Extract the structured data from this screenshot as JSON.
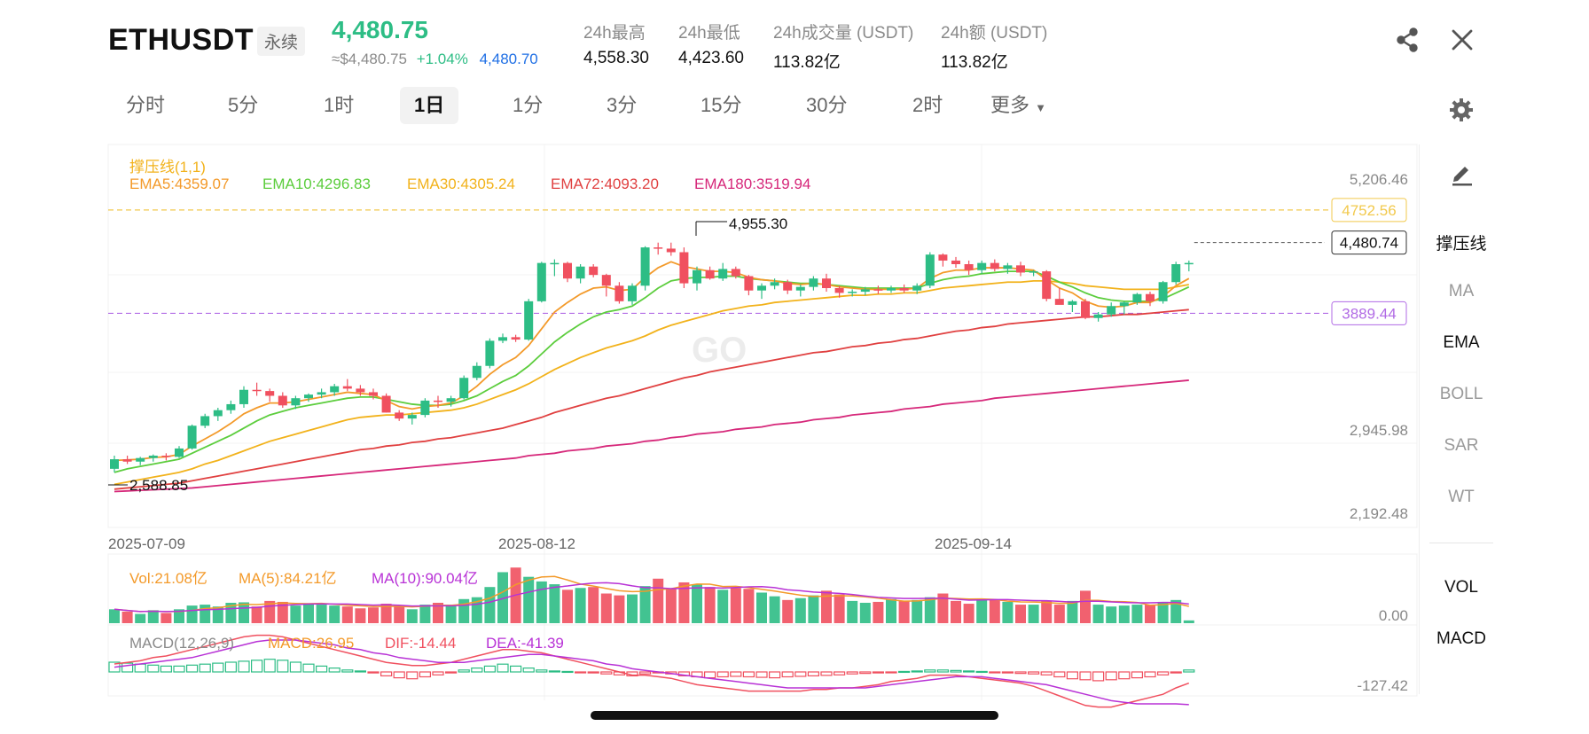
{
  "header": {
    "symbol": "ETHUSDT",
    "perpetual_label": "永续",
    "last_price": "4,480.75",
    "usd_equiv": "≈$4,480.75",
    "change_pct": "+1.04%",
    "mark_price": "4,480.70",
    "stats": [
      {
        "label": "24h最高",
        "value": "4,558.30"
      },
      {
        "label": "24h最低",
        "value": "4,423.60"
      },
      {
        "label": "24h成交量 (USDT)",
        "value": "113.82亿"
      },
      {
        "label": "24h额 (USDT)",
        "value": "113.82亿"
      }
    ],
    "share_icon": "share-icon",
    "close_icon": "close-icon"
  },
  "tabs": {
    "items": [
      "分时",
      "5分",
      "1时",
      "1日",
      "1分",
      "3分",
      "15分",
      "30分",
      "2时",
      "更多"
    ],
    "active": "1日",
    "settings_icon": "gear-icon"
  },
  "indicators": {
    "sr_label": "撑压线(1,1)",
    "ema5": "EMA5:4359.07",
    "ema10": "EMA10:4296.83",
    "ema30": "EMA30:4305.24",
    "ema72": "EMA72:4093.20",
    "ema180": "EMA180:3519.94",
    "vol": "Vol:21.08亿",
    "vol_ma5": "MA(5):84.21亿",
    "vol_ma10": "MA(10):90.04亿",
    "macd_params": "MACD(12,26,9)",
    "macd": "MACD:26.95",
    "dif": "DIF:-14.44",
    "dea": "DEA:-41.39"
  },
  "axis": {
    "price_ticks": [
      "5,206.46",
      "2,945.98",
      "2,192.48"
    ],
    "resistance": "4752.56",
    "support": "3889.44",
    "current_price_tag": "4,480.74",
    "dates": [
      "2025-07-09",
      "2025-08-12",
      "2025-09-14"
    ],
    "high_marker": "4,955.30",
    "low_marker": "2,588.85",
    "vol_zero": "0.00",
    "macd_min": "-127.42"
  },
  "right_panel": {
    "draw_icon": "pencil-icon",
    "items": [
      "撑压线",
      "MA",
      "EMA",
      "BOLL",
      "SAR",
      "WT"
    ],
    "active_items": [
      "撑压线",
      "EMA"
    ],
    "sub_items": [
      "VOL",
      "MACD"
    ]
  },
  "colors": {
    "up": "#2dbd85",
    "down": "#f0505f",
    "ema5": "#f39a2a",
    "ema10": "#5ccd3d",
    "ema30": "#f2b21b",
    "ema72": "#e04040",
    "ema180": "#d6287a",
    "macd_dea": "#b832d6",
    "resistance": "#f2c94c",
    "support": "#b16be5"
  },
  "chart_data": {
    "type": "candlestick",
    "y_range": [
      2192.48,
      5206.46
    ],
    "candles": [
      [
        2590,
        2700,
        2560,
        2670
      ],
      [
        2670,
        2700,
        2630,
        2650
      ],
      [
        2650,
        2690,
        2620,
        2680
      ],
      [
        2680,
        2710,
        2650,
        2700
      ],
      [
        2700,
        2720,
        2660,
        2690
      ],
      [
        2690,
        2780,
        2680,
        2760
      ],
      [
        2760,
        2960,
        2750,
        2950
      ],
      [
        2950,
        3050,
        2930,
        3030
      ],
      [
        3030,
        3100,
        2990,
        3080
      ],
      [
        3080,
        3160,
        3050,
        3130
      ],
      [
        3130,
        3280,
        3100,
        3250
      ],
      [
        3250,
        3310,
        3200,
        3240
      ],
      [
        3240,
        3260,
        3150,
        3200
      ],
      [
        3200,
        3230,
        3100,
        3120
      ],
      [
        3120,
        3200,
        3090,
        3180
      ],
      [
        3180,
        3220,
        3150,
        3210
      ],
      [
        3210,
        3260,
        3180,
        3230
      ],
      [
        3230,
        3300,
        3200,
        3280
      ],
      [
        3280,
        3340,
        3240,
        3260
      ],
      [
        3260,
        3290,
        3200,
        3230
      ],
      [
        3230,
        3260,
        3170,
        3200
      ],
      [
        3200,
        3220,
        3060,
        3060
      ],
      [
        3060,
        3080,
        2990,
        3010
      ],
      [
        3010,
        3060,
        2960,
        3040
      ],
      [
        3040,
        3180,
        3020,
        3160
      ],
      [
        3160,
        3200,
        3100,
        3150
      ],
      [
        3150,
        3200,
        3110,
        3180
      ],
      [
        3180,
        3370,
        3170,
        3350
      ],
      [
        3350,
        3480,
        3330,
        3450
      ],
      [
        3450,
        3680,
        3430,
        3660
      ],
      [
        3660,
        3720,
        3640,
        3690
      ],
      [
        3690,
        3710,
        3650,
        3670
      ],
      [
        3670,
        4010,
        3660,
        3990
      ],
      [
        3990,
        4320,
        3980,
        4310
      ],
      [
        4310,
        4340,
        4200,
        4310
      ],
      [
        4310,
        4320,
        4150,
        4180
      ],
      [
        4180,
        4300,
        4140,
        4280
      ],
      [
        4280,
        4300,
        4190,
        4210
      ],
      [
        4210,
        4220,
        4030,
        4120
      ],
      [
        4120,
        4150,
        3970,
        3990
      ],
      [
        3990,
        4140,
        3960,
        4120
      ],
      [
        4120,
        4450,
        4080,
        4440
      ],
      [
        4440,
        4480,
        4380,
        4430
      ],
      [
        4430,
        4480,
        4370,
        4400
      ],
      [
        4400,
        4440,
        4100,
        4140
      ],
      [
        4140,
        4280,
        4080,
        4250
      ],
      [
        4250,
        4280,
        4170,
        4180
      ],
      [
        4180,
        4310,
        4160,
        4260
      ],
      [
        4260,
        4280,
        4180,
        4200
      ],
      [
        4200,
        4210,
        4040,
        4080
      ],
      [
        4080,
        4140,
        4010,
        4120
      ],
      [
        4120,
        4180,
        4090,
        4150
      ],
      [
        4150,
        4170,
        4050,
        4080
      ],
      [
        4080,
        4130,
        4030,
        4110
      ],
      [
        4110,
        4200,
        4080,
        4180
      ],
      [
        4180,
        4220,
        4070,
        4100
      ],
      [
        4100,
        4120,
        4020,
        4060
      ],
      [
        4060,
        4090,
        4030,
        4070
      ],
      [
        4070,
        4110,
        4040,
        4090
      ],
      [
        4090,
        4120,
        4050,
        4080
      ],
      [
        4080,
        4120,
        4060,
        4100
      ],
      [
        4100,
        4130,
        4060,
        4080
      ],
      [
        4080,
        4140,
        4050,
        4120
      ],
      [
        4120,
        4400,
        4100,
        4380
      ],
      [
        4380,
        4390,
        4280,
        4330
      ],
      [
        4330,
        4360,
        4270,
        4300
      ],
      [
        4300,
        4330,
        4210,
        4250
      ],
      [
        4250,
        4330,
        4220,
        4310
      ],
      [
        4310,
        4340,
        4240,
        4260
      ],
      [
        4260,
        4310,
        4220,
        4290
      ],
      [
        4290,
        4320,
        4200,
        4230
      ],
      [
        4230,
        4250,
        4200,
        4240
      ],
      [
        4240,
        4250,
        3990,
        4010
      ],
      [
        4010,
        4100,
        3970,
        3960
      ],
      [
        3960,
        4000,
        3900,
        3990
      ],
      [
        3990,
        4010,
        3840,
        3850
      ],
      [
        3850,
        3900,
        3820,
        3880
      ],
      [
        3880,
        3980,
        3860,
        3950
      ],
      [
        3950,
        3990,
        3880,
        3980
      ],
      [
        3980,
        4060,
        3960,
        4050
      ],
      [
        4050,
        4070,
        3950,
        3990
      ],
      [
        3990,
        4160,
        3970,
        4150
      ],
      [
        4150,
        4320,
        4130,
        4300
      ],
      [
        4300,
        4330,
        4240,
        4310
      ]
    ],
    "ema": {
      "EMA5": [
        2660,
        2665,
        2670,
        2685,
        2690,
        2710,
        2780,
        2840,
        2900,
        2970,
        3050,
        3100,
        3140,
        3140,
        3150,
        3170,
        3190,
        3210,
        3230,
        3220,
        3210,
        3160,
        3110,
        3090,
        3110,
        3120,
        3140,
        3200,
        3280,
        3380,
        3460,
        3520,
        3620,
        3760,
        3900,
        3980,
        4050,
        4100,
        4110,
        4080,
        4090,
        4190,
        4270,
        4320,
        4280,
        4260,
        4240,
        4240,
        4230,
        4190,
        4170,
        4160,
        4140,
        4130,
        4140,
        4130,
        4110,
        4100,
        4090,
        4090,
        4090,
        4090,
        4100,
        4180,
        4230,
        4250,
        4250,
        4270,
        4270,
        4270,
        4260,
        4250,
        4170,
        4100,
        4060,
        3990,
        3950,
        3940,
        3950,
        3980,
        3980,
        4030,
        4120,
        4180
      ],
      "EMA10": [
        2560,
        2590,
        2610,
        2630,
        2650,
        2670,
        2720,
        2770,
        2820,
        2870,
        2930,
        2990,
        3040,
        3070,
        3100,
        3120,
        3140,
        3160,
        3180,
        3190,
        3190,
        3170,
        3150,
        3130,
        3120,
        3120,
        3130,
        3160,
        3200,
        3260,
        3320,
        3370,
        3450,
        3550,
        3650,
        3730,
        3800,
        3860,
        3900,
        3920,
        3950,
        4020,
        4100,
        4160,
        4180,
        4190,
        4190,
        4200,
        4200,
        4180,
        4170,
        4160,
        4150,
        4140,
        4140,
        4130,
        4120,
        4110,
        4100,
        4100,
        4100,
        4100,
        4100,
        4140,
        4170,
        4190,
        4200,
        4220,
        4230,
        4240,
        4240,
        4240,
        4200,
        4150,
        4110,
        4060,
        4020,
        4000,
        3990,
        3990,
        3990,
        4010,
        4060,
        4110
      ],
      "EMA30": [
        2460,
        2480,
        2500,
        2520,
        2540,
        2560,
        2590,
        2630,
        2660,
        2700,
        2740,
        2780,
        2820,
        2850,
        2880,
        2910,
        2940,
        2970,
        3000,
        3020,
        3030,
        3040,
        3040,
        3050,
        3060,
        3070,
        3080,
        3100,
        3130,
        3170,
        3210,
        3250,
        3300,
        3360,
        3420,
        3470,
        3520,
        3560,
        3600,
        3630,
        3660,
        3700,
        3750,
        3790,
        3820,
        3850,
        3880,
        3910,
        3930,
        3950,
        3960,
        3980,
        3990,
        4000,
        4010,
        4020,
        4030,
        4040,
        4040,
        4050,
        4050,
        4060,
        4060,
        4080,
        4100,
        4110,
        4120,
        4130,
        4140,
        4150,
        4150,
        4160,
        4160,
        4150,
        4140,
        4120,
        4110,
        4100,
        4090,
        4090,
        4090,
        4090,
        4110,
        4130
      ],
      "EMA72": [
        2420,
        2430,
        2440,
        2450,
        2460,
        2470,
        2490,
        2510,
        2530,
        2550,
        2570,
        2590,
        2610,
        2630,
        2650,
        2670,
        2690,
        2710,
        2730,
        2750,
        2760,
        2780,
        2790,
        2810,
        2820,
        2840,
        2850,
        2870,
        2890,
        2910,
        2930,
        2960,
        2990,
        3020,
        3060,
        3090,
        3120,
        3150,
        3180,
        3200,
        3230,
        3260,
        3290,
        3320,
        3350,
        3370,
        3400,
        3420,
        3440,
        3460,
        3480,
        3500,
        3520,
        3540,
        3560,
        3570,
        3590,
        3610,
        3620,
        3640,
        3650,
        3670,
        3680,
        3700,
        3720,
        3740,
        3750,
        3770,
        3780,
        3800,
        3810,
        3820,
        3830,
        3840,
        3850,
        3860,
        3860,
        3870,
        3880,
        3880,
        3890,
        3900,
        3910,
        3920
      ],
      "EMA180": [
        2400,
        2405,
        2410,
        2415,
        2420,
        2425,
        2430,
        2440,
        2450,
        2460,
        2470,
        2480,
        2490,
        2500,
        2510,
        2520,
        2530,
        2540,
        2550,
        2560,
        2570,
        2580,
        2590,
        2600,
        2610,
        2620,
        2630,
        2640,
        2650,
        2660,
        2670,
        2680,
        2700,
        2710,
        2720,
        2740,
        2750,
        2760,
        2780,
        2790,
        2800,
        2820,
        2830,
        2850,
        2860,
        2880,
        2890,
        2900,
        2920,
        2930,
        2940,
        2960,
        2970,
        2980,
        3000,
        3010,
        3020,
        3040,
        3050,
        3060,
        3070,
        3090,
        3100,
        3110,
        3130,
        3140,
        3150,
        3160,
        3180,
        3190,
        3200,
        3210,
        3220,
        3230,
        3240,
        3250,
        3260,
        3270,
        3280,
        3290,
        3300,
        3310,
        3320,
        3330
      ]
    },
    "volume": [
      30,
      25,
      20,
      28,
      22,
      30,
      38,
      40,
      36,
      44,
      45,
      36,
      48,
      46,
      38,
      42,
      40,
      38,
      36,
      32,
      34,
      42,
      38,
      30,
      40,
      44,
      40,
      52,
      56,
      78,
      110,
      120,
      100,
      90,
      84,
      72,
      76,
      78,
      64,
      60,
      62,
      80,
      96,
      74,
      88,
      84,
      78,
      72,
      76,
      74,
      66,
      58,
      50,
      54,
      60,
      70,
      62,
      48,
      44,
      46,
      52,
      48,
      50,
      56,
      64,
      48,
      42,
      52,
      50,
      46,
      40,
      40,
      48,
      40,
      48,
      70,
      40,
      36,
      38,
      40,
      40,
      46,
      50,
      6
    ],
    "macd_hist": [
      20,
      18,
      16,
      14,
      12,
      12,
      14,
      16,
      18,
      20,
      22,
      24,
      26,
      24,
      20,
      16,
      12,
      8,
      4,
      2,
      -2,
      -8,
      -12,
      -14,
      -10,
      -6,
      -2,
      4,
      8,
      12,
      16,
      12,
      8,
      4,
      2,
      1,
      -1,
      -2,
      -4,
      -6,
      -8,
      -4,
      -2,
      -4,
      -8,
      -10,
      -12,
      -10,
      -9,
      -10,
      -11,
      -12,
      -10,
      -9,
      -8,
      -7,
      -6,
      -4,
      -3,
      -2,
      -1,
      1,
      2,
      4,
      4,
      3,
      2,
      1,
      -1,
      -2,
      -3,
      -4,
      -6,
      -10,
      -14,
      -16,
      -18,
      -16,
      -14,
      -12,
      -10,
      -6,
      -2,
      4
    ],
    "macd_dif": [
      10,
      12,
      14,
      18,
      20,
      24,
      28,
      32,
      36,
      40,
      44,
      46,
      46,
      44,
      40,
      36,
      32,
      28,
      24,
      20,
      16,
      12,
      10,
      8,
      8,
      10,
      12,
      16,
      20,
      24,
      28,
      28,
      26,
      24,
      20,
      16,
      12,
      8,
      4,
      0,
      -4,
      -4,
      -6,
      -8,
      -12,
      -16,
      -18,
      -20,
      -22,
      -24,
      -24,
      -24,
      -24,
      -24,
      -22,
      -22,
      -20,
      -20,
      -18,
      -16,
      -12,
      -10,
      -8,
      -4,
      -4,
      -4,
      -6,
      -8,
      -10,
      -12,
      -14,
      -18,
      -24,
      -30,
      -36,
      -42,
      -44,
      -44,
      -40,
      -36,
      -32,
      -28,
      -20,
      -14
    ],
    "macd_dea": [
      6,
      8,
      10,
      12,
      14,
      16,
      18,
      22,
      26,
      30,
      34,
      38,
      40,
      40,
      40,
      38,
      36,
      34,
      30,
      28,
      24,
      22,
      18,
      16,
      14,
      12,
      12,
      12,
      14,
      16,
      18,
      20,
      22,
      22,
      20,
      18,
      16,
      14,
      10,
      8,
      4,
      2,
      0,
      -2,
      -4,
      -6,
      -8,
      -10,
      -12,
      -14,
      -16,
      -18,
      -20,
      -20,
      -20,
      -20,
      -20,
      -20,
      -20,
      -18,
      -16,
      -14,
      -12,
      -10,
      -8,
      -6,
      -6,
      -6,
      -8,
      -10,
      -12,
      -14,
      -16,
      -20,
      -24,
      -28,
      -32,
      -36,
      -38,
      -40,
      -40,
      -40,
      -40,
      -41
    ]
  }
}
